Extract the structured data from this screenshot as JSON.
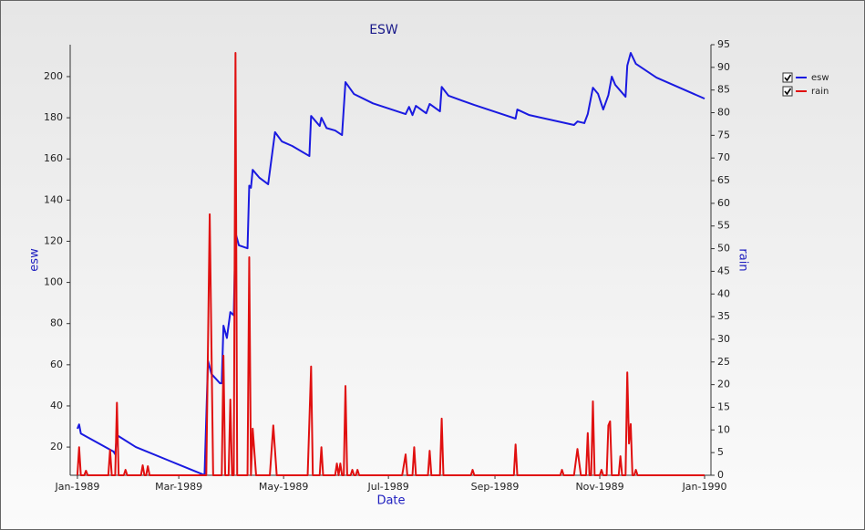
{
  "chart_data": {
    "type": "line",
    "title": "ESW",
    "x_label": "Date",
    "y_label": "esw",
    "y2_label": "rain",
    "xlim": [
      -4.2,
      368.7
    ],
    "xticks": [
      {
        "value": 0,
        "label": "Jan-1989"
      },
      {
        "value": 59,
        "label": "Mar-1989"
      },
      {
        "value": 120,
        "label": "May-1989"
      },
      {
        "value": 181,
        "label": "Jul-1989"
      },
      {
        "value": 243,
        "label": "Sep-1989"
      },
      {
        "value": 304,
        "label": "Nov-1989"
      },
      {
        "value": 365,
        "label": "Jan-1990"
      }
    ],
    "ylim": [
      6.3,
      215.5
    ],
    "yticks": [
      20,
      40,
      60,
      80,
      100,
      120,
      140,
      160,
      180,
      200
    ],
    "y2lim": [
      0,
      95
    ],
    "y2ticks": [
      0,
      5,
      10,
      15,
      20,
      25,
      30,
      35,
      40,
      45,
      50,
      55,
      60,
      65,
      70,
      75,
      80,
      85,
      90,
      95
    ],
    "legend": "right",
    "series": [
      {
        "name": "esw",
        "color": "#1a1ae0",
        "axis": "y",
        "x": [
          0,
          1,
          2,
          21,
          22,
          23,
          34,
          56,
          73,
          74,
          76,
          78,
          83,
          84,
          85,
          87,
          89,
          91,
          92,
          94,
          99,
          100,
          101,
          102,
          106,
          111,
          115,
          119,
          125,
          135,
          136,
          141,
          142,
          145,
          150,
          154,
          156,
          161,
          172,
          191,
          193,
          195,
          197,
          203,
          205,
          211,
          212,
          216,
          231,
          255,
          256,
          263,
          289,
          291,
          295,
          297,
          300,
          303,
          306,
          309,
          311,
          313,
          319,
          320,
          322,
          325,
          337,
          365
        ],
        "values": [
          28.9,
          31,
          26.6,
          17.8,
          16.5,
          25.8,
          20,
          12.5,
          6.7,
          6.5,
          62,
          55.5,
          51,
          51,
          79,
          73,
          85.6,
          84,
          124,
          118,
          116.6,
          147,
          146,
          154.7,
          150.8,
          147.7,
          173,
          168.5,
          166.3,
          161.4,
          180.9,
          176,
          180,
          175,
          173.8,
          171.6,
          197.3,
          191.5,
          187,
          181.8,
          185.3,
          181.3,
          185.8,
          182.2,
          186.7,
          183.1,
          195,
          190.7,
          186.2,
          179.6,
          184,
          181.3,
          176.5,
          178.2,
          177.4,
          181.8,
          194.6,
          191.6,
          184,
          191,
          200,
          196,
          190.2,
          205.3,
          211.5,
          206.2,
          199.5,
          189.3
        ]
      },
      {
        "name": "rain",
        "color": "#e01010",
        "axis": "y2",
        "x": [
          0,
          1,
          2,
          4,
          5,
          6,
          18,
          19,
          20,
          22,
          23,
          24,
          27,
          28,
          29,
          37,
          38,
          39,
          40,
          41,
          42,
          75,
          77,
          79,
          84,
          85,
          86,
          88,
          89,
          90,
          91,
          92,
          93,
          99,
          100,
          101,
          102,
          104,
          112,
          114,
          116,
          134,
          136,
          137,
          141,
          142,
          143,
          150,
          151,
          152,
          153,
          154,
          155,
          156,
          157,
          159,
          160,
          161,
          162,
          163,
          164,
          189,
          191,
          192,
          195,
          196,
          197,
          204,
          205,
          206,
          211,
          212,
          213,
          229,
          230,
          231,
          254,
          255,
          256,
          281,
          282,
          283,
          289,
          291,
          293,
          296,
          297,
          298,
          299,
          300,
          301,
          304,
          305,
          306,
          308,
          309,
          310,
          311,
          315,
          316,
          317,
          319,
          320,
          321,
          322,
          323,
          324,
          325,
          326,
          365
        ],
        "values": [
          0,
          6.2,
          0,
          0,
          1,
          0,
          0,
          5.6,
          0,
          0,
          16,
          0,
          0,
          1.2,
          0,
          0,
          2.2,
          0,
          0,
          2,
          0,
          0,
          57.6,
          0,
          0,
          26.4,
          0,
          0,
          16.7,
          0,
          0,
          93.2,
          0,
          0,
          48.1,
          0,
          10.3,
          0,
          0,
          11,
          0,
          0,
          24,
          0,
          0,
          6.2,
          0,
          0,
          2.6,
          0,
          2.6,
          0,
          0,
          19.7,
          0,
          0,
          1.2,
          0,
          0,
          1.2,
          0,
          0,
          4.6,
          0,
          0,
          6.2,
          0,
          0,
          5.4,
          0,
          0,
          12.5,
          0,
          0,
          1.2,
          0,
          0,
          6.8,
          0,
          0,
          1.2,
          0,
          0,
          5.8,
          0,
          0,
          9.3,
          0,
          0,
          16.3,
          0,
          0,
          1.2,
          0,
          0,
          11,
          11.9,
          0,
          0,
          4.2,
          0,
          0,
          22.7,
          7,
          11.3,
          0,
          0,
          1.2,
          0,
          0
        ]
      }
    ]
  }
}
